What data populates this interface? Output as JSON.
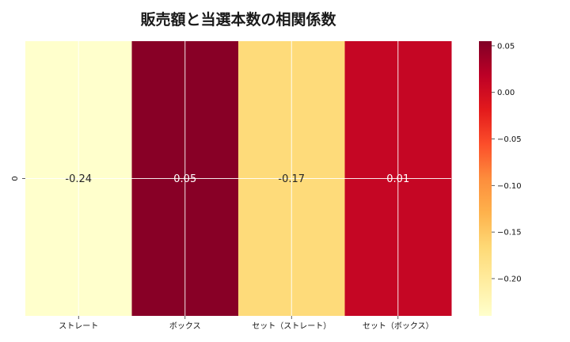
{
  "chart_data": {
    "type": "heatmap",
    "title": "販売額と当選本数の相関係数",
    "rows": [
      "0"
    ],
    "columns": [
      "ストレート",
      "ボックス",
      "セット（ストレート）",
      "セット（ボックス）"
    ],
    "values": [
      [
        -0.24,
        0.05,
        -0.17,
        0.01
      ]
    ],
    "cell_labels": [
      "-0.24",
      "0.05",
      "-0.17",
      "0.01"
    ],
    "colormap": "YlOrRd",
    "vmin": -0.24,
    "vmax": 0.055,
    "colorbar_ticks": [
      0.05,
      0.0,
      -0.05,
      -0.1,
      -0.15,
      -0.2
    ],
    "colorbar_tick_labels": [
      "0.05",
      "0.00",
      "−0.05",
      "−0.10",
      "−0.15",
      "−0.20"
    ],
    "grid": true
  }
}
